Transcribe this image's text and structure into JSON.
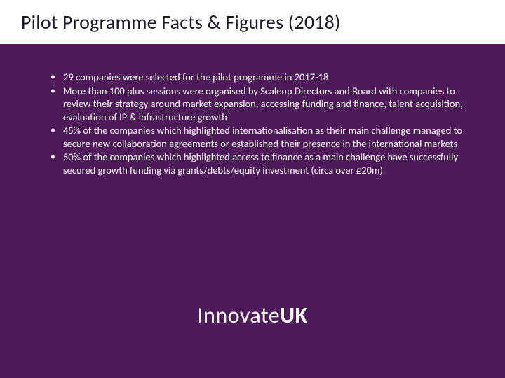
{
  "title": "Pilot Programme Facts & Figures (2018)",
  "bullets": [
    "29 companies were selected for the pilot programme in 2017-18",
    "More than 100 plus sessions were organised by Scaleup Directors and Board with companies to review their strategy around market expansion, accessing funding and finance, talent acquisition, evaluation of IP & infrastructure growth",
    "45% of the companies which highlighted internationalisation as their main challenge managed to secure new collaboration agreements or established their presence in the international markets",
    "50% of the companies which highlighted access to finance as a main challenge have successfully secured growth funding via grants/debts/equity investment (circa over £20m)"
  ],
  "logo": {
    "part1": "Innovate",
    "part2": "UK"
  },
  "colors": {
    "background": "#4e1a5a",
    "title_bar_bg": "#ffffff",
    "title_text": "#1a1a2e",
    "body_text": "#ffffff"
  },
  "typography": {
    "title_fontsize": 28,
    "bullet_fontsize": 14.5,
    "logo_fontsize": 32
  }
}
